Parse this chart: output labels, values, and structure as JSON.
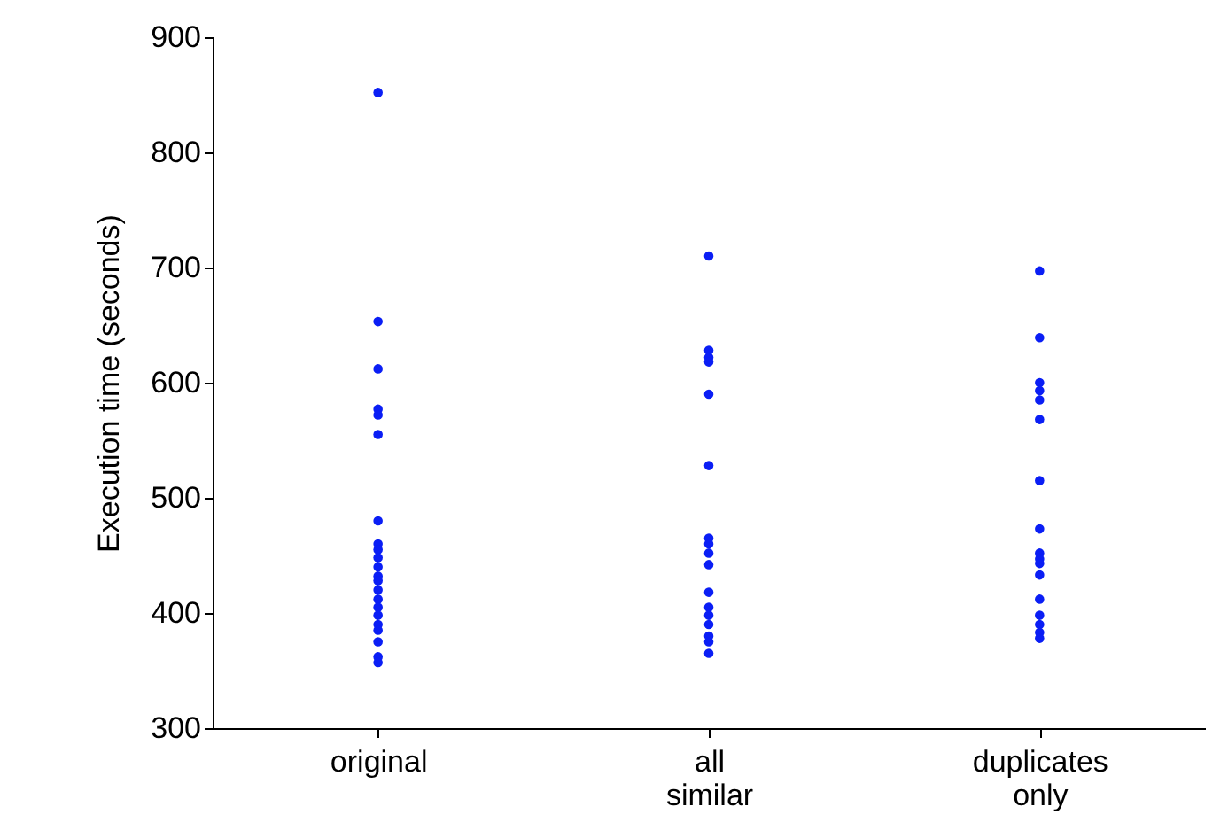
{
  "chart_data": {
    "type": "scatter",
    "ylabel": "Execution time (seconds)",
    "categories": [
      "original",
      "all similar",
      "duplicates only"
    ],
    "ylim": [
      300,
      900
    ],
    "yticks": [
      300,
      400,
      500,
      600,
      700,
      800,
      900
    ],
    "grid": false,
    "legend": false,
    "marker": "circle",
    "series": [
      {
        "color": "#0a1ef5",
        "x": [
          "original",
          "original",
          "original",
          "original",
          "original",
          "original",
          "original",
          "original",
          "original",
          "original",
          "original",
          "original",
          "original",
          "original",
          "original",
          "original",
          "original",
          "original",
          "original",
          "original",
          "original",
          "original",
          "all similar",
          "all similar",
          "all similar",
          "all similar",
          "all similar",
          "all similar",
          "all similar",
          "all similar",
          "all similar",
          "all similar",
          "all similar",
          "all similar",
          "all similar",
          "all similar",
          "all similar",
          "all similar",
          "all similar",
          "duplicates only",
          "duplicates only",
          "duplicates only",
          "duplicates only",
          "duplicates only",
          "duplicates only",
          "duplicates only",
          "duplicates only",
          "duplicates only",
          "duplicates only",
          "duplicates only",
          "duplicates only",
          "duplicates only",
          "duplicates only",
          "duplicates only",
          "duplicates only",
          "duplicates only"
        ],
        "values": [
          852,
          653,
          612,
          577,
          572,
          555,
          480,
          460,
          455,
          448,
          440,
          432,
          428,
          420,
          412,
          405,
          398,
          390,
          385,
          375,
          362,
          357,
          710,
          628,
          622,
          618,
          590,
          528,
          465,
          460,
          452,
          442,
          418,
          405,
          398,
          390,
          380,
          375,
          365,
          697,
          639,
          600,
          593,
          585,
          568,
          515,
          473,
          452,
          447,
          443,
          433,
          412,
          398,
          390,
          383,
          378
        ]
      }
    ]
  }
}
